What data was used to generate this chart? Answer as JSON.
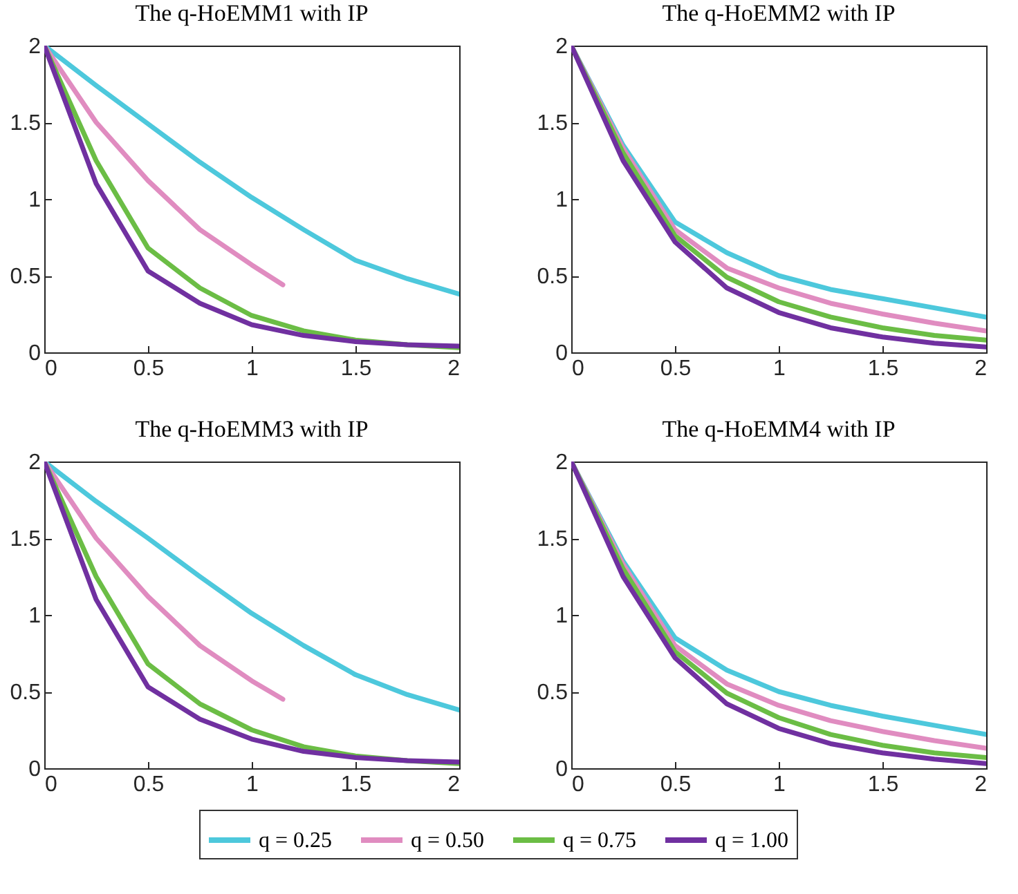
{
  "chart_data": [
    {
      "type": "line",
      "title": "The q-HoEMM1 with IP",
      "x": [
        0,
        0.25,
        0.5,
        0.75,
        1,
        1.25,
        1.5,
        1.75,
        2
      ],
      "xlim": [
        0,
        2
      ],
      "xticks": [
        0,
        0.5,
        1,
        1.5,
        2
      ],
      "ylim": [
        0,
        2
      ],
      "yticks": [
        0,
        0.5,
        1,
        1.5,
        2
      ],
      "legend": "bottom",
      "series": [
        {
          "name": "q = 0.25",
          "color": "#4dc8dc",
          "values": [
            2,
            1.74,
            1.49,
            1.24,
            1.01,
            0.8,
            0.6,
            0.48,
            0.38
          ]
        },
        {
          "name": "q = 0.50",
          "color": "#e08cc0",
          "x": [
            0,
            0.25,
            0.5,
            0.75,
            1,
            1.15
          ],
          "values": [
            2,
            1.5,
            1.12,
            0.8,
            0.57,
            0.44
          ]
        },
        {
          "name": "q = 0.75",
          "color": "#6bbd45",
          "values": [
            2,
            1.25,
            0.68,
            0.42,
            0.24,
            0.14,
            0.08,
            0.05,
            0.03
          ]
        },
        {
          "name": "q = 1.00",
          "color": "#7030a0",
          "values": [
            2,
            1.1,
            0.53,
            0.32,
            0.18,
            0.11,
            0.07,
            0.05,
            0.04
          ]
        }
      ]
    },
    {
      "type": "line",
      "title": "The q-HoEMM2 with IP",
      "x": [
        0,
        0.25,
        0.5,
        0.75,
        1,
        1.25,
        1.5,
        1.75,
        2
      ],
      "xlim": [
        0,
        2
      ],
      "xticks": [
        0,
        0.5,
        1,
        1.5,
        2
      ],
      "ylim": [
        0,
        2
      ],
      "yticks": [
        0,
        0.5,
        1,
        1.5,
        2
      ],
      "legend": "bottom",
      "series": [
        {
          "name": "q = 0.25",
          "color": "#4dc8dc",
          "values": [
            2,
            1.35,
            0.85,
            0.65,
            0.5,
            0.41,
            0.35,
            0.29,
            0.23
          ]
        },
        {
          "name": "q = 0.50",
          "color": "#e08cc0",
          "values": [
            2,
            1.33,
            0.8,
            0.55,
            0.42,
            0.32,
            0.25,
            0.19,
            0.14
          ]
        },
        {
          "name": "q = 0.75",
          "color": "#6bbd45",
          "values": [
            2,
            1.3,
            0.76,
            0.49,
            0.33,
            0.23,
            0.16,
            0.11,
            0.08
          ]
        },
        {
          "name": "q = 1.00",
          "color": "#7030a0",
          "values": [
            2,
            1.25,
            0.72,
            0.42,
            0.26,
            0.16,
            0.1,
            0.06,
            0.035
          ]
        }
      ]
    },
    {
      "type": "line",
      "title": "The q-HoEMM3 with IP",
      "x": [
        0,
        0.25,
        0.5,
        0.75,
        1,
        1.25,
        1.5,
        1.75,
        2
      ],
      "xlim": [
        0,
        2
      ],
      "xticks": [
        0,
        0.5,
        1,
        1.5,
        2
      ],
      "ylim": [
        0,
        2
      ],
      "yticks": [
        0,
        0.5,
        1,
        1.5,
        2
      ],
      "legend": "bottom",
      "series": [
        {
          "name": "q = 0.25",
          "color": "#4dc8dc",
          "values": [
            2,
            1.74,
            1.5,
            1.25,
            1.01,
            0.8,
            0.61,
            0.48,
            0.38
          ]
        },
        {
          "name": "q = 0.50",
          "color": "#e08cc0",
          "x": [
            0,
            0.25,
            0.5,
            0.75,
            1,
            1.15
          ],
          "values": [
            2,
            1.5,
            1.12,
            0.8,
            0.57,
            0.45
          ]
        },
        {
          "name": "q = 0.75",
          "color": "#6bbd45",
          "values": [
            2,
            1.25,
            0.68,
            0.42,
            0.25,
            0.14,
            0.08,
            0.05,
            0.03
          ]
        },
        {
          "name": "q = 1.00",
          "color": "#7030a0",
          "values": [
            2,
            1.1,
            0.53,
            0.32,
            0.19,
            0.11,
            0.07,
            0.05,
            0.04
          ]
        }
      ]
    },
    {
      "type": "line",
      "title": "The q-HoEMM4 with IP",
      "x": [
        0,
        0.25,
        0.5,
        0.75,
        1,
        1.25,
        1.5,
        1.75,
        2
      ],
      "xlim": [
        0,
        2
      ],
      "xticks": [
        0,
        0.5,
        1,
        1.5,
        2
      ],
      "ylim": [
        0,
        2
      ],
      "yticks": [
        0,
        0.5,
        1,
        1.5,
        2
      ],
      "legend": "bottom",
      "series": [
        {
          "name": "q = 0.25",
          "color": "#4dc8dc",
          "values": [
            2,
            1.35,
            0.85,
            0.64,
            0.5,
            0.41,
            0.34,
            0.28,
            0.22
          ]
        },
        {
          "name": "q = 0.50",
          "color": "#e08cc0",
          "values": [
            2,
            1.33,
            0.8,
            0.55,
            0.41,
            0.31,
            0.24,
            0.18,
            0.13
          ]
        },
        {
          "name": "q = 0.75",
          "color": "#6bbd45",
          "values": [
            2,
            1.3,
            0.76,
            0.49,
            0.33,
            0.22,
            0.15,
            0.1,
            0.07
          ]
        },
        {
          "name": "q = 1.00",
          "color": "#7030a0",
          "values": [
            2,
            1.25,
            0.72,
            0.42,
            0.26,
            0.16,
            0.1,
            0.06,
            0.03
          ]
        }
      ]
    }
  ]
}
